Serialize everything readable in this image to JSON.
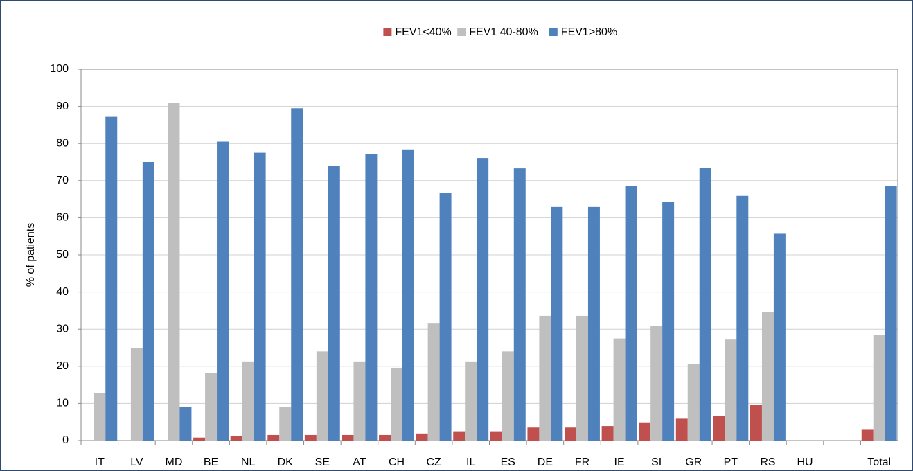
{
  "chart_data": {
    "type": "bar",
    "y_label": "% of patients",
    "categories": [
      "IT",
      "LV",
      "MD",
      "BE",
      "NL",
      "DK",
      "SE",
      "AT",
      "CH",
      "CZ",
      "IL",
      "ES",
      "DE",
      "FR",
      "IE",
      "SI",
      "GR",
      "PT",
      "RS",
      "HU",
      null,
      "Total"
    ],
    "series": [
      {
        "name": "FEV1<40%",
        "color": "#c0504d",
        "values": [
          0,
          0,
          0,
          0.8,
          1.2,
          1.5,
          1.5,
          1.5,
          1.5,
          1.9,
          2.5,
          2.5,
          3.5,
          3.5,
          3.9,
          4.9,
          5.9,
          6.7,
          9.7,
          0,
          null,
          2.9
        ]
      },
      {
        "name": "FEV1 40-80%",
        "color": "#bfbfbf",
        "values": [
          12.8,
          25,
          91,
          18.2,
          21.3,
          9,
          24,
          21.3,
          19.6,
          31.5,
          21.3,
          24,
          33.6,
          33.6,
          27.5,
          30.8,
          20.6,
          27.2,
          34.6,
          0,
          null,
          28.5
        ]
      },
      {
        "name": "FEV1>80%",
        "color": "#4f81bd",
        "values": [
          87.2,
          75,
          9,
          80.5,
          77.5,
          89.5,
          74,
          77.1,
          78.4,
          66.6,
          76.1,
          73.3,
          62.9,
          62.9,
          68.6,
          64.3,
          73.5,
          65.9,
          55.7,
          0,
          null,
          68.6
        ]
      }
    ],
    "ylim": [
      0,
      100
    ],
    "yticks": [
      0,
      10,
      20,
      30,
      40,
      50,
      60,
      70,
      80,
      90,
      100
    ],
    "grid": true,
    "legend": "top"
  }
}
